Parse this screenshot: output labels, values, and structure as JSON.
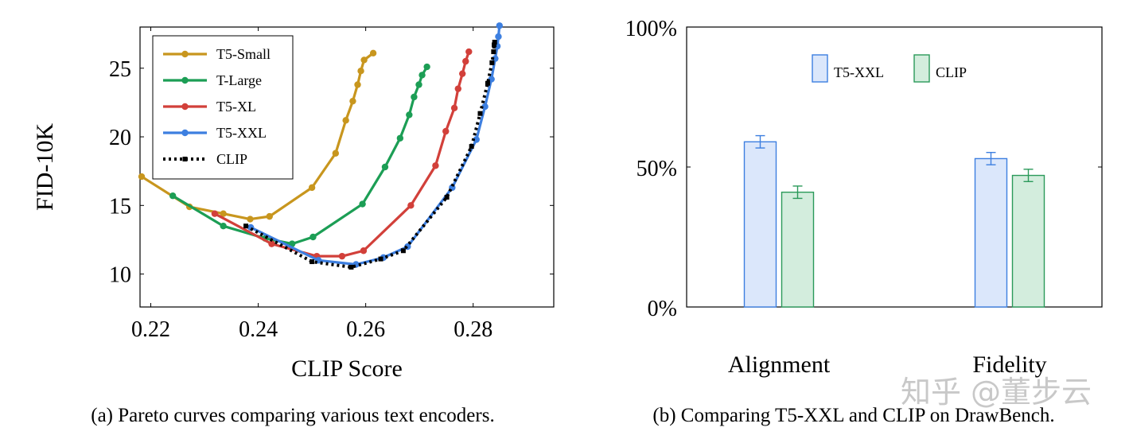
{
  "chart_data": [
    {
      "type": "line",
      "xlabel": "CLIP Score",
      "ylabel": "FID-10K",
      "xlim": [
        0.218,
        0.295
      ],
      "ylim": [
        7.6,
        28.0
      ],
      "xticks": [
        0.22,
        0.24,
        0.26,
        0.28
      ],
      "xtick_labels": [
        "0.22",
        "0.24",
        "0.26",
        "0.28"
      ],
      "yticks": [
        10,
        15,
        20,
        25
      ],
      "ytick_labels": [
        "10",
        "15",
        "20",
        "25"
      ],
      "grid": false,
      "legend": "top-left",
      "caption": "(a) Pareto curves comparing various text encoders.",
      "series": [
        {
          "name": "T5-Small",
          "color": "#c8961e",
          "style": "solid",
          "points": [
            [
              0.2183,
              17.1
            ],
            [
              0.2272,
              14.9
            ],
            [
              0.2335,
              14.4
            ],
            [
              0.2385,
              14.0
            ],
            [
              0.2421,
              14.2
            ],
            [
              0.25,
              16.3
            ],
            [
              0.2544,
              18.8
            ],
            [
              0.2563,
              21.2
            ],
            [
              0.2576,
              22.6
            ],
            [
              0.2585,
              23.8
            ],
            [
              0.2591,
              24.8
            ],
            [
              0.2597,
              25.6
            ],
            [
              0.2614,
              26.1
            ]
          ]
        },
        {
          "name": "T-Large",
          "color": "#1c9e55",
          "style": "solid",
          "points": [
            [
              0.2241,
              15.7
            ],
            [
              0.2335,
              13.5
            ],
            [
              0.2413,
              12.6
            ],
            [
              0.2463,
              12.2
            ],
            [
              0.2502,
              12.7
            ],
            [
              0.2594,
              15.1
            ],
            [
              0.2636,
              17.8
            ],
            [
              0.2664,
              19.9
            ],
            [
              0.2681,
              21.6
            ],
            [
              0.269,
              22.9
            ],
            [
              0.2699,
              23.8
            ],
            [
              0.2705,
              24.5
            ],
            [
              0.2714,
              25.1
            ]
          ]
        },
        {
          "name": "T5-XL",
          "color": "#d2403a",
          "style": "solid",
          "points": [
            [
              0.2319,
              14.4
            ],
            [
              0.2425,
              12.2
            ],
            [
              0.2509,
              11.3
            ],
            [
              0.2556,
              11.3
            ],
            [
              0.2596,
              11.7
            ],
            [
              0.2684,
              15.0
            ],
            [
              0.273,
              17.9
            ],
            [
              0.2749,
              20.4
            ],
            [
              0.2765,
              22.1
            ],
            [
              0.2772,
              23.5
            ],
            [
              0.278,
              24.6
            ],
            [
              0.2786,
              25.5
            ],
            [
              0.2792,
              26.2
            ]
          ]
        },
        {
          "name": "T5-XXL",
          "color": "#3d7fe0",
          "style": "solid",
          "points": [
            [
              0.2386,
              13.4
            ],
            [
              0.2512,
              11.0
            ],
            [
              0.2582,
              10.7
            ],
            [
              0.2633,
              11.2
            ],
            [
              0.2678,
              12.0
            ],
            [
              0.2761,
              16.3
            ],
            [
              0.2806,
              19.8
            ],
            [
              0.2822,
              22.2
            ],
            [
              0.2834,
              24.2
            ],
            [
              0.2841,
              25.7
            ],
            [
              0.2845,
              26.6
            ],
            [
              0.2847,
              27.3
            ],
            [
              0.2849,
              28.1
            ]
          ]
        },
        {
          "name": "CLIP",
          "color": "#000000",
          "style": "dotted",
          "points": [
            [
              0.2377,
              13.5
            ],
            [
              0.25,
              10.9
            ],
            [
              0.2573,
              10.5
            ],
            [
              0.2628,
              11.1
            ],
            [
              0.267,
              11.7
            ],
            [
              0.2751,
              15.6
            ],
            [
              0.2797,
              19.3
            ],
            [
              0.2813,
              21.7
            ],
            [
              0.2827,
              23.9
            ],
            [
              0.2835,
              25.4
            ],
            [
              0.2838,
              26.2
            ],
            [
              0.2839,
              26.7
            ],
            [
              0.284,
              26.9
            ]
          ]
        }
      ]
    },
    {
      "type": "bar",
      "categories": [
        "Alignment",
        "Fidelity"
      ],
      "series": [
        {
          "name": "T5-XXL",
          "values": [
            59,
            53
          ],
          "errors": [
            2.2,
            2.2
          ],
          "fill": "#dbe7fb",
          "stroke": "#3d7fe0"
        },
        {
          "name": "CLIP",
          "values": [
            41,
            47
          ],
          "errors": [
            2.2,
            2.2
          ],
          "fill": "#d3eddd",
          "stroke": "#2b9a5a"
        }
      ],
      "ylim": [
        0,
        100
      ],
      "yticks": [
        0,
        50,
        100
      ],
      "ytick_labels": [
        "0%",
        "50%",
        "100%"
      ],
      "xlabel": "",
      "ylabel": "",
      "grid": false,
      "legend": "top-center",
      "caption": "(b) Comparing T5-XXL and CLIP on DrawBench."
    }
  ],
  "watermark": "知乎 @董步云"
}
